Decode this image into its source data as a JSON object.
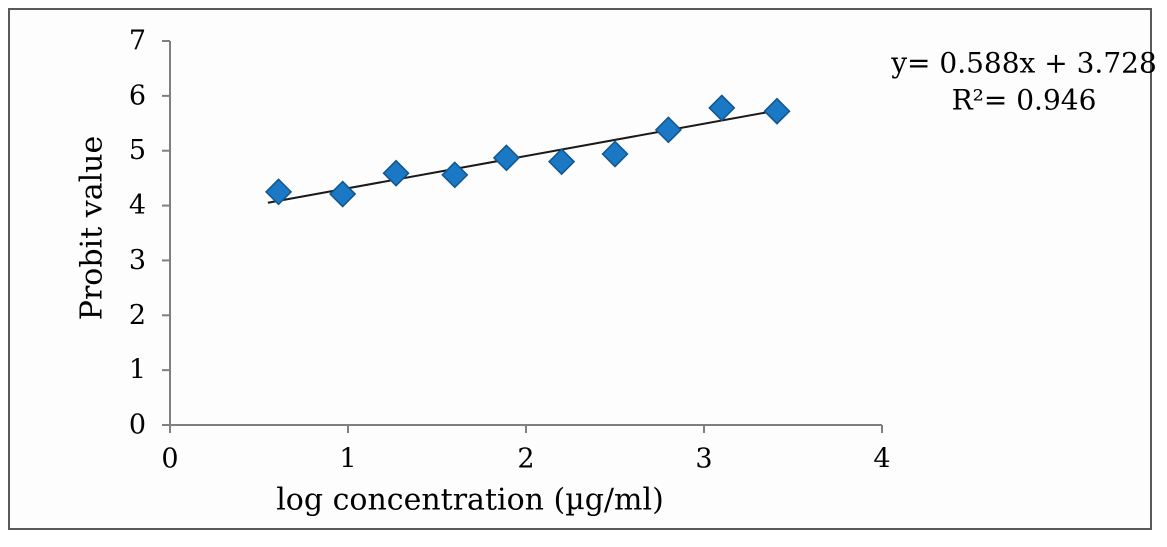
{
  "figure": {
    "background": "#fdfdfd",
    "border_color": "#5a5a5a"
  },
  "chart_data": {
    "type": "scatter",
    "title": "",
    "xlabel": "log concentration (µg/ml)",
    "ylabel": "Probit value",
    "xlim": [
      0,
      4
    ],
    "ylim": [
      0,
      7
    ],
    "xticks": [
      0,
      1,
      2,
      3,
      4
    ],
    "yticks": [
      0,
      1,
      2,
      3,
      4,
      5,
      6,
      7
    ],
    "grid": false,
    "legend": false,
    "axis_color": "#7f7f7f",
    "text_color": "#000000",
    "series": [
      {
        "name": "probit-vs-log-concentration",
        "marker": "diamond",
        "marker_color": "#1a78c4",
        "marker_edge_color": "#11568c",
        "points": [
          [
            0.61,
            4.25
          ],
          [
            0.97,
            4.21
          ],
          [
            1.27,
            4.59
          ],
          [
            1.6,
            4.56
          ],
          [
            1.89,
            4.87
          ],
          [
            2.2,
            4.8
          ],
          [
            2.5,
            4.94
          ],
          [
            2.8,
            5.38
          ],
          [
            3.1,
            5.78
          ],
          [
            3.41,
            5.72
          ]
        ]
      }
    ],
    "trendline": {
      "type": "linear",
      "slope": 0.588,
      "intercept": 3.728,
      "r_squared": 0.946,
      "x_start": 0.55,
      "x_end": 3.46,
      "color": "#1a1a1a",
      "equation_line1": "y= 0.588x + 3.728",
      "equation_line2": "R²= 0.946"
    }
  }
}
